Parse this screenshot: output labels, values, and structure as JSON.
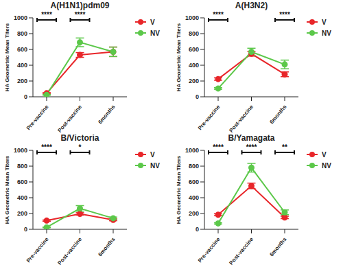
{
  "chart_data": [
    {
      "type": "line",
      "title": "A(H1N1)pdm09",
      "y_label": "HA Geometric Mean Titers",
      "categories": [
        "Pre-vaccine",
        "Post-vaccine",
        "6months"
      ],
      "series": [
        {
          "name": "V",
          "color": "#e8262a",
          "marker": "circle",
          "values": [
            45,
            530,
            570
          ],
          "errors": [
            8,
            30,
            60
          ]
        },
        {
          "name": "NV",
          "color": "#5cc84a",
          "marker": "circle",
          "values": [
            25,
            690,
            570
          ],
          "errors": [
            5,
            55,
            60
          ]
        }
      ],
      "ylim": [
        0,
        1000
      ],
      "yticks": [
        0,
        200,
        400,
        600,
        800,
        1000
      ],
      "legend": "right",
      "annotations": [
        {
          "x": "Pre-vaccine",
          "label": "****"
        },
        {
          "x": "Post-vaccine",
          "label": "****"
        }
      ]
    },
    {
      "type": "line",
      "title": "A(H3N2)",
      "y_label": "HA Geometric Mean Titers",
      "categories": [
        "Pre-vaccine",
        "Post-vaccine",
        "6months"
      ],
      "series": [
        {
          "name": "V",
          "color": "#e8262a",
          "marker": "circle",
          "values": [
            225,
            545,
            285
          ],
          "errors": [
            15,
            30,
            30
          ]
        },
        {
          "name": "NV",
          "color": "#5cc84a",
          "marker": "circle",
          "values": [
            105,
            570,
            410
          ],
          "errors": [
            10,
            45,
            55
          ]
        }
      ],
      "ylim": [
        0,
        1000
      ],
      "yticks": [
        0,
        200,
        400,
        600,
        800,
        1000
      ],
      "legend": "right",
      "annotations": [
        {
          "x": "Pre-vaccine",
          "label": "****"
        },
        {
          "x": "6months",
          "label": "****"
        }
      ]
    },
    {
      "type": "line",
      "title": "B/Victoria",
      "y_label": "HA Geometric Mean Titers",
      "categories": [
        "Pre-vaccine",
        "Post-vaccine",
        "6months"
      ],
      "series": [
        {
          "name": "V",
          "color": "#e8262a",
          "marker": "circle",
          "values": [
            110,
            195,
            120
          ],
          "errors": [
            8,
            15,
            12
          ]
        },
        {
          "name": "NV",
          "color": "#5cc84a",
          "marker": "circle",
          "values": [
            25,
            265,
            140
          ],
          "errors": [
            4,
            35,
            15
          ]
        }
      ],
      "ylim": [
        0,
        1000
      ],
      "yticks": [
        0,
        200,
        400,
        600,
        800,
        1000
      ],
      "legend": "right",
      "annotations": [
        {
          "x": "Pre-vaccine",
          "label": "****"
        },
        {
          "x": "Post-vaccine",
          "label": "*"
        }
      ]
    },
    {
      "type": "line",
      "title": "B/Yamagata",
      "y_label": "HA Geometric Mean Titers",
      "categories": [
        "Pre-vaccine",
        "Post-vaccine",
        "6months"
      ],
      "series": [
        {
          "name": "V",
          "color": "#e8262a",
          "marker": "circle",
          "values": [
            185,
            550,
            150
          ],
          "errors": [
            12,
            35,
            15
          ]
        },
        {
          "name": "NV",
          "color": "#5cc84a",
          "marker": "circle",
          "values": [
            75,
            780,
            215
          ],
          "errors": [
            8,
            55,
            30
          ]
        }
      ],
      "ylim": [
        0,
        1000
      ],
      "yticks": [
        0,
        200,
        400,
        600,
        800,
        1000
      ],
      "legend": "right",
      "annotations": [
        {
          "x": "Pre-vaccine",
          "label": "****"
        },
        {
          "x": "Post-vaccine",
          "label": "****"
        },
        {
          "x": "6months",
          "label": "**"
        }
      ]
    }
  ]
}
